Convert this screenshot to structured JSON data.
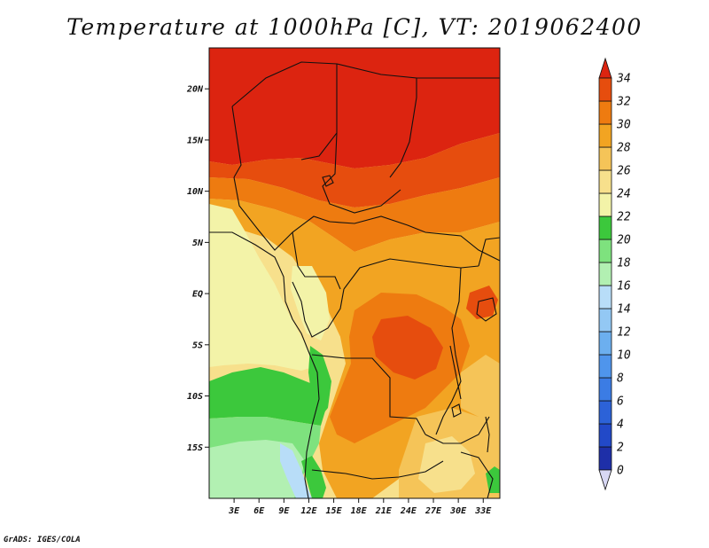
{
  "title": "Temperature at 1000hPa [C], VT: 2019062400",
  "footer": "GrADS: IGES/COLA",
  "chart_data": {
    "type": "heatmap",
    "title": "Temperature at 1000hPa [C], VT: 2019062400",
    "x_ticks": [
      "3E",
      "6E",
      "9E",
      "12E",
      "15E",
      "18E",
      "21E",
      "24E",
      "27E",
      "30E",
      "33E"
    ],
    "y_ticks": [
      "20N",
      "15N",
      "10N",
      "5N",
      "EQ",
      "5S",
      "10S",
      "15S"
    ],
    "xlim_deg": [
      0,
      35
    ],
    "ylim_deg": [
      -20,
      24
    ],
    "colorbar": {
      "levels": [
        "0",
        "2",
        "4",
        "6",
        "8",
        "10",
        "12",
        "14",
        "16",
        "18",
        "20",
        "22",
        "24",
        "26",
        "28",
        "30",
        "32",
        "34"
      ],
      "colors": [
        "#1a0f6e",
        "#1e2fa8",
        "#2249c8",
        "#2c62d8",
        "#3b7ce4",
        "#4f95ec",
        "#6cafef",
        "#93c8f4",
        "#b8ddf8",
        "#b2f0b2",
        "#7ee27e",
        "#3cc83c",
        "#f3f3a8",
        "#f7e08c",
        "#f5c458",
        "#f2a422",
        "#ee7b10",
        "#e64d0e",
        "#dc2410"
      ],
      "extend": "both"
    }
  }
}
